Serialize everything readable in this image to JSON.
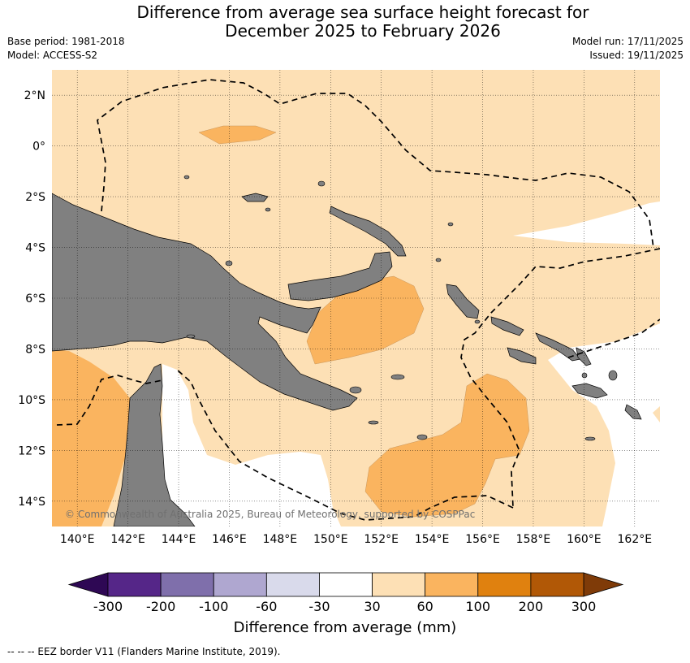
{
  "title": {
    "line1": "Difference from average sea surface height forecast for",
    "line2": "December 2025 to February 2026"
  },
  "meta": {
    "base_period": "Base period: 1981-2018",
    "model": "Model: ACCESS-S2",
    "model_run": "Model run: 17/11/2025",
    "issued": "Issued: 19/11/2025"
  },
  "map": {
    "lon_range": [
      139,
      163
    ],
    "lat_range": [
      -15,
      3
    ],
    "lon_ticks": [
      "140°E",
      "142°E",
      "144°E",
      "146°E",
      "148°E",
      "150°E",
      "152°E",
      "154°E",
      "156°E",
      "158°E",
      "160°E",
      "162°E"
    ],
    "lat_ticks": [
      "2°N",
      "0°",
      "2°S",
      "4°S",
      "6°S",
      "8°S",
      "10°S",
      "12°S",
      "14°S"
    ],
    "copyright": "© Commonwealth of Australia 2025, Bureau of Meteorology, supported by COSPPac",
    "colors": {
      "ocean_30_60": "#fde0b5",
      "ocean_60_100": "#fab45f",
      "ocean_neutral": "#ffffff",
      "land": "#808080"
    }
  },
  "colorbar": {
    "title": "Difference from average (mm)",
    "labels": [
      "-300",
      "-200",
      "-100",
      "-60",
      "-30",
      "30",
      "60",
      "100",
      "200",
      "300"
    ],
    "colors": [
      "#552688",
      "#7f6fab",
      "#afa7d0",
      "#d9daeb",
      "#ffffff",
      "#fde0b5",
      "#fab45f",
      "#e0810f",
      "#b15806"
    ],
    "extend_low": "#2e0854",
    "extend_high": "#7f3b08"
  },
  "legend_note": "--  --  -- EEZ border V11 (Flanders Marine Institute, 2019)."
}
